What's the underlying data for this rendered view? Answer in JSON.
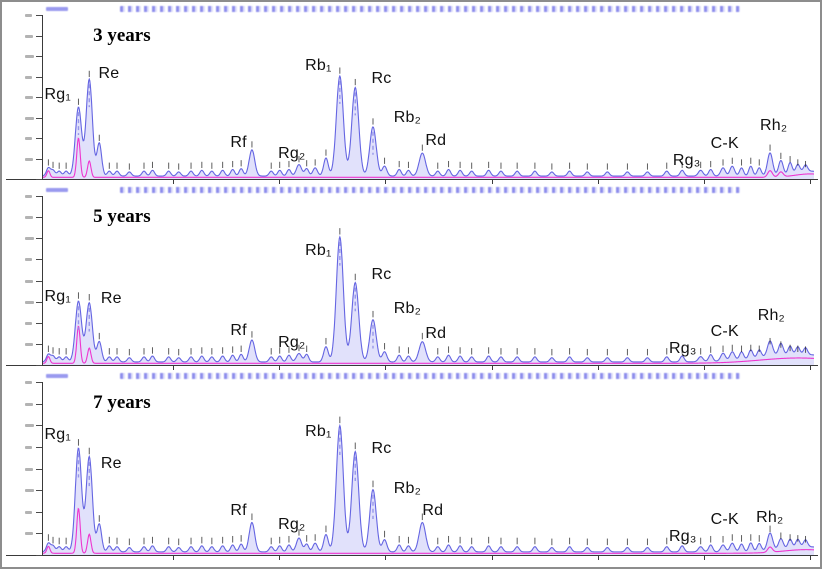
{
  "chart_data": {
    "type": "line",
    "chart_kind": "hplc-chromatogram-stack",
    "title": "",
    "x_axis": {
      "label": "",
      "tick_positions_pct": [
        16,
        29,
        42,
        55,
        68,
        81,
        94
      ]
    },
    "y_axis": {
      "tick_count": 9
    },
    "colors": {
      "trace_blue": "#6565e2",
      "peak_fill": "#dedefb",
      "peak_inner": "#8f8fe8",
      "magenta": "#ee35cf",
      "axis": "#3a3a3a",
      "header_strip": "#8181ea",
      "label_text": "#111111",
      "tiny_text": "#1a1a1a"
    },
    "panels": [
      {
        "sample_label": "3 years",
        "peak_annotations": [
          {
            "label": "Rg₁",
            "x": 0.2,
            "y": 44
          },
          {
            "label": "Re",
            "x": 7.2,
            "y": 31
          },
          {
            "label": "Rf",
            "x": 24.3,
            "y": 73
          },
          {
            "label": "Rg₂",
            "x": 30.5,
            "y": 80
          },
          {
            "label": "Rb₁",
            "x": 34.0,
            "y": 26
          },
          {
            "label": "Rc",
            "x": 42.6,
            "y": 34
          },
          {
            "label": "Rb₂",
            "x": 45.5,
            "y": 58
          },
          {
            "label": "Rd",
            "x": 49.6,
            "y": 72
          },
          {
            "label": "Rg₃",
            "x": 81.7,
            "y": 84
          },
          {
            "label": "C-K",
            "x": 86.6,
            "y": 74
          },
          {
            "label": "Rh₂",
            "x": 93.0,
            "y": 63
          }
        ],
        "major_peaks": [
          [
            "Rg₁",
            4.6,
            42,
            0.4
          ],
          [
            "Re",
            6.0,
            59,
            0.4
          ],
          [
            "",
            7.3,
            20,
            0.3
          ],
          [
            "Rf",
            27.1,
            16,
            0.36
          ],
          [
            "Rg₂",
            33.2,
            7,
            0.34
          ],
          [
            "",
            35.3,
            5,
            0.3
          ],
          [
            "",
            36.7,
            11,
            0.3
          ],
          [
            "Rb₁",
            38.5,
            61,
            0.45
          ],
          [
            "Rc",
            40.5,
            54,
            0.45
          ],
          [
            "Rb₂",
            42.8,
            30,
            0.42
          ],
          [
            "",
            44.3,
            6,
            0.3
          ],
          [
            "Rd",
            49.2,
            14,
            0.42
          ],
          [
            "Rg₃",
            85.3,
            3.5,
            0.3
          ],
          [
            "C-K",
            88.2,
            5,
            0.3
          ],
          [
            "",
            89.4,
            6,
            0.3
          ],
          [
            "Rh₂",
            94.3,
            14,
            0.34
          ],
          [
            "",
            95.7,
            9,
            0.3
          ]
        ],
        "minor_peaks": [
          [
            0.7,
            5
          ],
          [
            1.3,
            3.5
          ],
          [
            2.1,
            3
          ],
          [
            3.0,
            3
          ],
          [
            8.6,
            3
          ],
          [
            9.6,
            3
          ],
          [
            11.2,
            2.5
          ],
          [
            13.1,
            3
          ],
          [
            14.2,
            3.5
          ],
          [
            16.3,
            3
          ],
          [
            17.6,
            2.5
          ],
          [
            19.2,
            3
          ],
          [
            20.6,
            3.5
          ],
          [
            21.9,
            3
          ],
          [
            23.3,
            3.5
          ],
          [
            24.6,
            4
          ],
          [
            25.7,
            4.5
          ],
          [
            29.6,
            3
          ],
          [
            30.7,
            3.5
          ],
          [
            31.9,
            4
          ],
          [
            34.2,
            4.5
          ],
          [
            46.2,
            4
          ],
          [
            47.4,
            3.5
          ],
          [
            51.2,
            3
          ],
          [
            52.6,
            4
          ],
          [
            54.1,
            3.5
          ],
          [
            55.6,
            3
          ],
          [
            57.8,
            3.5
          ],
          [
            59.4,
            3
          ],
          [
            61.5,
            3
          ],
          [
            63.8,
            3
          ],
          [
            66.0,
            2.5
          ],
          [
            68.3,
            3
          ],
          [
            70.6,
            2.5
          ],
          [
            73.2,
            2.5
          ],
          [
            75.8,
            2.5
          ],
          [
            78.4,
            2.5
          ],
          [
            80.9,
            3
          ],
          [
            82.9,
            3.5
          ],
          [
            86.6,
            4
          ],
          [
            90.6,
            5
          ],
          [
            91.8,
            6
          ],
          [
            92.9,
            5
          ],
          [
            96.9,
            7
          ],
          [
            97.9,
            5
          ],
          [
            98.9,
            4
          ]
        ],
        "magenta_spikes": [
          [
            0.7,
            4,
            0.2
          ],
          [
            4.6,
            24,
            0.22
          ],
          [
            6.0,
            10,
            0.22
          ],
          [
            94.3,
            4,
            0.3
          ],
          [
            95.7,
            3,
            0.3
          ]
        ],
        "drift": [
          99.5,
          3,
          2
        ]
      },
      {
        "sample_label": "5 years",
        "peak_annotations": [
          {
            "label": "Rg₁",
            "x": 0.2,
            "y": 55
          },
          {
            "label": "Re",
            "x": 7.5,
            "y": 56
          },
          {
            "label": "Rf",
            "x": 24.3,
            "y": 75
          },
          {
            "label": "Rg₂",
            "x": 30.5,
            "y": 82
          },
          {
            "label": "Rb₁",
            "x": 34.0,
            "y": 28
          },
          {
            "label": "Rc",
            "x": 42.6,
            "y": 42
          },
          {
            "label": "Rb₂",
            "x": 45.5,
            "y": 62
          },
          {
            "label": "Rd",
            "x": 49.6,
            "y": 77
          },
          {
            "label": "Rg₃",
            "x": 81.2,
            "y": 86
          },
          {
            "label": "C-K",
            "x": 86.6,
            "y": 76
          },
          {
            "label": "Rh₂",
            "x": 92.7,
            "y": 66
          }
        ],
        "major_peaks": [
          [
            "Rg₁",
            4.6,
            36,
            0.4
          ],
          [
            "Re",
            6.0,
            35,
            0.4
          ],
          [
            "",
            7.3,
            12,
            0.3
          ],
          [
            "Rf",
            27.1,
            13,
            0.36
          ],
          [
            "Rg₂",
            33.2,
            5,
            0.34
          ],
          [
            "",
            36.7,
            9,
            0.3
          ],
          [
            "Rb₁",
            38.5,
            74,
            0.45
          ],
          [
            "Rc",
            40.5,
            47,
            0.45
          ],
          [
            "Rb₂",
            42.8,
            25,
            0.42
          ],
          [
            "",
            44.3,
            6,
            0.3
          ],
          [
            "Rd",
            49.2,
            12,
            0.42
          ],
          [
            "Rg₃",
            85.3,
            3,
            0.3
          ],
          [
            "C-K",
            88.2,
            4.5,
            0.3
          ],
          [
            "",
            89.4,
            5,
            0.3
          ],
          [
            "Rh₂",
            94.3,
            9,
            0.34
          ],
          [
            "",
            95.7,
            7,
            0.3
          ]
        ],
        "minor_peaks": [
          [
            0.7,
            4.5
          ],
          [
            1.3,
            3.5
          ],
          [
            2.1,
            3
          ],
          [
            3.0,
            3
          ],
          [
            8.6,
            3
          ],
          [
            9.6,
            3
          ],
          [
            11.2,
            2.5
          ],
          [
            13.1,
            3
          ],
          [
            14.2,
            3.5
          ],
          [
            16.3,
            3
          ],
          [
            17.6,
            2.5
          ],
          [
            19.2,
            3
          ],
          [
            20.6,
            3.5
          ],
          [
            21.9,
            3
          ],
          [
            23.3,
            3.5
          ],
          [
            24.6,
            4
          ],
          [
            25.7,
            4.5
          ],
          [
            29.6,
            3
          ],
          [
            30.7,
            3.5
          ],
          [
            31.9,
            4
          ],
          [
            34.2,
            4.5
          ],
          [
            46.2,
            4
          ],
          [
            47.4,
            3.5
          ],
          [
            51.2,
            3
          ],
          [
            52.6,
            4
          ],
          [
            54.1,
            3.5
          ],
          [
            55.6,
            3
          ],
          [
            57.8,
            3.5
          ],
          [
            59.4,
            3
          ],
          [
            61.5,
            3
          ],
          [
            63.8,
            3
          ],
          [
            66.0,
            2.5
          ],
          [
            68.3,
            3
          ],
          [
            70.6,
            2.5
          ],
          [
            73.2,
            2.5
          ],
          [
            75.8,
            2.5
          ],
          [
            78.4,
            2.5
          ],
          [
            80.9,
            3
          ],
          [
            82.9,
            3.5
          ],
          [
            86.6,
            4
          ],
          [
            90.6,
            4.5
          ],
          [
            91.8,
            5
          ],
          [
            92.9,
            4.5
          ],
          [
            96.9,
            5
          ],
          [
            97.9,
            4.5
          ],
          [
            98.9,
            4
          ]
        ],
        "magenta_spikes": [
          [
            0.7,
            4,
            0.2
          ],
          [
            4.6,
            22,
            0.22
          ],
          [
            6.0,
            9,
            0.22
          ]
        ],
        "drift": [
          98,
          4.5,
          5
        ]
      },
      {
        "sample_label": "7 years",
        "peak_annotations": [
          {
            "label": "Rg₁",
            "x": 0.2,
            "y": 26
          },
          {
            "label": "Re",
            "x": 7.5,
            "y": 43
          },
          {
            "label": "Rf",
            "x": 24.3,
            "y": 70
          },
          {
            "label": "Rg₂",
            "x": 30.5,
            "y": 78
          },
          {
            "label": "Rb₁",
            "x": 34.0,
            "y": 24
          },
          {
            "label": "Rc",
            "x": 42.6,
            "y": 34
          },
          {
            "label": "Rb₂",
            "x": 45.5,
            "y": 57
          },
          {
            "label": "Rd",
            "x": 49.2,
            "y": 70
          },
          {
            "label": "Rg₃",
            "x": 81.2,
            "y": 85
          },
          {
            "label": "C-K",
            "x": 86.6,
            "y": 75
          },
          {
            "label": "Rh₂",
            "x": 92.5,
            "y": 74
          }
        ],
        "major_peaks": [
          [
            "Rg₁",
            4.6,
            60,
            0.4
          ],
          [
            "Re",
            6.0,
            55,
            0.4
          ],
          [
            "",
            7.3,
            16,
            0.3
          ],
          [
            "Rf",
            27.1,
            17,
            0.36
          ],
          [
            "Rg₂",
            33.2,
            8,
            0.34
          ],
          [
            "",
            35.3,
            5,
            0.3
          ],
          [
            "",
            36.7,
            10,
            0.3
          ],
          [
            "Rb₁",
            38.5,
            73,
            0.45
          ],
          [
            "Rc",
            40.5,
            58,
            0.45
          ],
          [
            "Rb₂",
            42.8,
            36,
            0.42
          ],
          [
            "",
            44.3,
            7,
            0.3
          ],
          [
            "Rd",
            49.2,
            17,
            0.42
          ],
          [
            "Rg₃",
            85.3,
            3,
            0.3
          ],
          [
            "C-K",
            88.2,
            4,
            0.3
          ],
          [
            "",
            89.4,
            5,
            0.3
          ],
          [
            "Rh₂",
            94.3,
            10,
            0.34
          ],
          [
            "",
            95.7,
            6,
            0.3
          ]
        ],
        "minor_peaks": [
          [
            0.7,
            5
          ],
          [
            1.3,
            3.5
          ],
          [
            2.1,
            3
          ],
          [
            3.0,
            3
          ],
          [
            8.6,
            3.5
          ],
          [
            9.6,
            3
          ],
          [
            11.2,
            2.5
          ],
          [
            13.1,
            3
          ],
          [
            14.2,
            3.5
          ],
          [
            16.3,
            3
          ],
          [
            17.6,
            2.5
          ],
          [
            19.2,
            3
          ],
          [
            20.6,
            3.5
          ],
          [
            21.9,
            3
          ],
          [
            23.3,
            3.5
          ],
          [
            24.6,
            4
          ],
          [
            25.7,
            4.5
          ],
          [
            29.6,
            3
          ],
          [
            30.7,
            3.5
          ],
          [
            31.9,
            4
          ],
          [
            34.2,
            4.5
          ],
          [
            46.2,
            4
          ],
          [
            47.4,
            3.5
          ],
          [
            51.2,
            3
          ],
          [
            52.6,
            4
          ],
          [
            54.1,
            3.5
          ],
          [
            55.6,
            3
          ],
          [
            57.8,
            3.5
          ],
          [
            59.4,
            3
          ],
          [
            61.5,
            3
          ],
          [
            63.8,
            3
          ],
          [
            66.0,
            2.5
          ],
          [
            68.3,
            3
          ],
          [
            70.6,
            2.5
          ],
          [
            73.2,
            2.5
          ],
          [
            75.8,
            2.5
          ],
          [
            78.4,
            2.5
          ],
          [
            80.9,
            3
          ],
          [
            82.9,
            3.5
          ],
          [
            86.6,
            4
          ],
          [
            90.6,
            4.5
          ],
          [
            91.8,
            5
          ],
          [
            92.9,
            4.5
          ],
          [
            96.9,
            5
          ],
          [
            97.9,
            4.5
          ],
          [
            98.9,
            4
          ]
        ],
        "magenta_spikes": [
          [
            0.7,
            4,
            0.2
          ],
          [
            4.6,
            26,
            0.22
          ],
          [
            6.0,
            11,
            0.22
          ],
          [
            94.3,
            3,
            0.3
          ]
        ],
        "drift": [
          99,
          3,
          3
        ]
      }
    ]
  }
}
